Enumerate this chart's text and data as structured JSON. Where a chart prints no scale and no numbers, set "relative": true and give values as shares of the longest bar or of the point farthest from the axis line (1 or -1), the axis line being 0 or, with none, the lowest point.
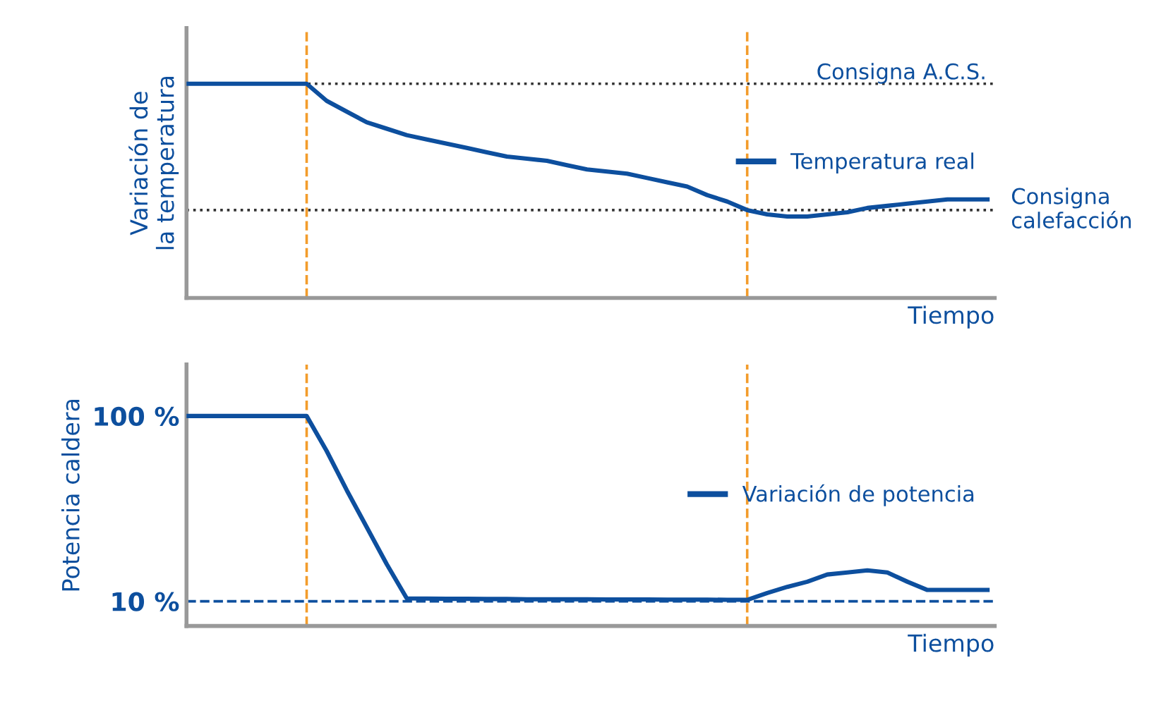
{
  "chart_data": [
    {
      "type": "line",
      "relative": true,
      "xlabel": "Tiempo",
      "ylabel": "Variación de\nla temperatura",
      "tick_labels": false,
      "grid": false,
      "legend": "right",
      "marker": "none",
      "line_style": "solid",
      "categories": [
        null,
        null,
        null,
        null,
        null,
        null,
        null,
        null,
        null,
        null,
        null,
        null,
        null,
        null,
        null,
        null,
        null,
        null,
        null,
        null,
        null,
        null,
        null,
        null,
        null,
        null,
        null,
        null,
        null,
        null,
        null,
        null,
        null,
        null,
        null,
        null,
        null,
        null,
        null,
        null,
        null
      ],
      "series": [
        {
          "name": "Temperatura real",
          "color": "#0d4f9e",
          "values": [
            1,
            1,
            1,
            1,
            1,
            1,
            1,
            0.92,
            0.87,
            0.82,
            0.79,
            0.76,
            0.74,
            0.72,
            0.7,
            0.68,
            0.66,
            0.65,
            0.64,
            0.62,
            0.6,
            0.59,
            0.58,
            0.56,
            0.54,
            0.52,
            0.48,
            0.45,
            0.41,
            0.39,
            0.38,
            0.38,
            0.39,
            0.4,
            0.42,
            0.43,
            0.44,
            0.45,
            0.46,
            0.46,
            0.46
          ]
        }
      ],
      "ref_lines": [
        {
          "axis": "y",
          "value": 1,
          "label": "Consigna A.C.S.",
          "color": "#333333",
          "line_style": "dotted"
        },
        {
          "axis": "y",
          "value": 0.41,
          "label": "Consigna calefacción",
          "color": "#333333",
          "line_style": "dotted"
        }
      ]
    },
    {
      "type": "line",
      "xlabel": "Tiempo",
      "ylabel": "Potencia caldera",
      "tick_labels": "y",
      "grid": false,
      "legend": "right",
      "marker": "none",
      "line_style": "solid",
      "ylim": [
        -2,
        125
      ],
      "yticks": [
        {
          "value": 10,
          "label": "10 %"
        },
        {
          "value": 100,
          "label": "100 %"
        }
      ],
      "categories": [
        null,
        null,
        null,
        null,
        null,
        null,
        null,
        null,
        null,
        null,
        null,
        null,
        null,
        null,
        null,
        null,
        null,
        null,
        null,
        null,
        null,
        null,
        null,
        null,
        null,
        null,
        null,
        null,
        null,
        null,
        null,
        null,
        null,
        null,
        null,
        null,
        null,
        null,
        null,
        null,
        null
      ],
      "series": [
        {
          "name": "Variación de potencia",
          "color": "#0d4f9e",
          "values": [
            100,
            100,
            100,
            100,
            100,
            100,
            100,
            83,
            64,
            46,
            28,
            11.4,
            11.3,
            11.2,
            11.2,
            11.1,
            11.1,
            11,
            11,
            11,
            11,
            10.9,
            10.9,
            10.9,
            10.8,
            10.8,
            10.8,
            10.7,
            10.7,
            14,
            17,
            19.5,
            23,
            24,
            25,
            24,
            19.5,
            15.5,
            15.5,
            15.5,
            15.5
          ]
        }
      ],
      "ref_lines": [
        {
          "axis": "y",
          "value": 10,
          "color": "#0d4f9e",
          "line_style": "dashed"
        }
      ]
    }
  ]
}
